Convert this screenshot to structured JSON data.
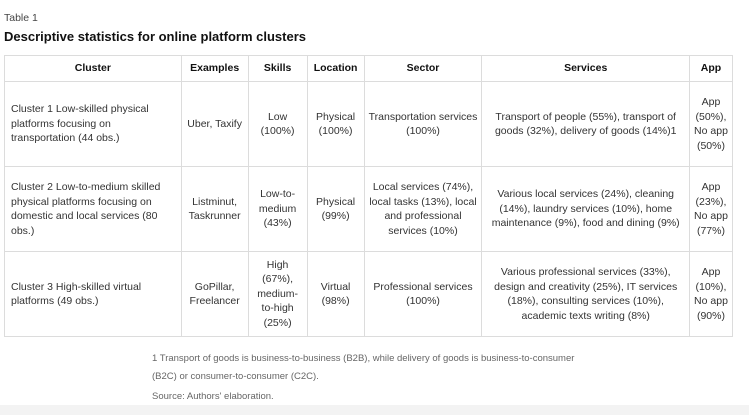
{
  "caption": "Table 1",
  "title": "Descriptive statistics for online platform clusters",
  "headers": [
    "Cluster",
    "Examples",
    "Skills",
    "Location",
    "Sector",
    "Services",
    "App"
  ],
  "rows": [
    [
      "Cluster 1 Low-skilled physical platforms focusing on transportation (44 obs.)",
      "Uber, Taxify",
      "Low (100%)",
      "Physical (100%)",
      "Transportation services (100%)",
      "Transport of people (55%), transport of goods (32%), delivery of goods (14%)1",
      "App (50%), No app (50%)"
    ],
    [
      "Cluster 2 Low-to-medium skilled physical platforms focusing on domestic and local services (80 obs.)",
      "Listminut, Taskrunner",
      "Low-to-medium (43%)",
      "Physical (99%)",
      "Local services (74%), local tasks (13%), local and professional services (10%)",
      "Various local services (24%), cleaning (14%), laundry services (10%), home maintenance (9%), food and dining (9%)",
      "App (23%), No app (77%)"
    ],
    [
      "Cluster 3 High-skilled virtual platforms (49 obs.)",
      "GoPillar, Freelancer",
      "High (67%), medium-to-high (25%)",
      "Virtual (98%)",
      "Professional services (100%)",
      "Various professional services (33%), design and creativity (25%), IT services (18%), consulting services (10%), academic texts writing (8%)",
      "App (10%), No app (90%)"
    ]
  ],
  "footnote": "1 Transport of goods is business-to-business (B2B), while delivery of goods is business-to-consumer (B2C) or consumer-to-consumer (C2C).",
  "source": "Source: Authors' elaboration."
}
